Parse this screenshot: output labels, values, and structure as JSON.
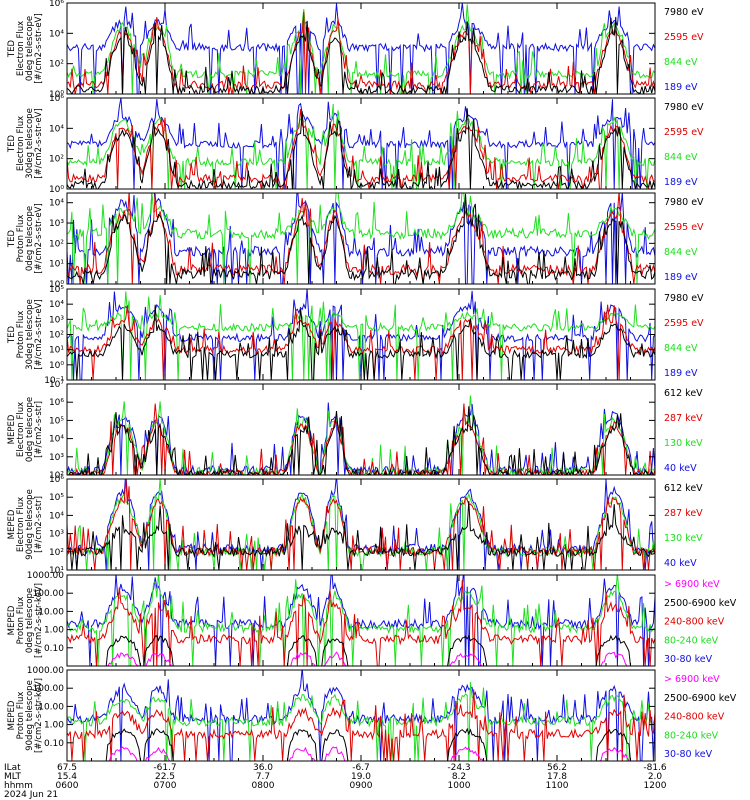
{
  "chart_data": {
    "type": "line",
    "x_hhmm_ticks": [
      "0600",
      "0700",
      "0800",
      "0900",
      "1000",
      "1100",
      "1200"
    ],
    "footer": {
      "row_labels": [
        "ILat",
        "MLT",
        "hhmm",
        "2024 Jun 21"
      ],
      "ilat_ticks": [
        "67.5",
        "-61.7",
        "36.0",
        "-6.7",
        "-24.3",
        "56.2",
        "-81.6"
      ],
      "mlt_ticks": [
        "15.4",
        "22.5",
        "7.7",
        "19.0",
        "8.2",
        "17.8",
        "2.0"
      ]
    },
    "colors": {
      "blue": "#1010e0",
      "red": "#e00000",
      "green": "#20e020",
      "black": "#000000",
      "magenta": "#ff00ff"
    },
    "panels": [
      {
        "ylabel": [
          "TED",
          "Electron Flux",
          "0deg telescope",
          "[#/cm2-s-str-eV]"
        ],
        "ylog": true,
        "yticks": [
          1,
          100,
          10000,
          1000000
        ],
        "ylim": [
          1,
          1000000
        ],
        "ytick_labels": [
          "10⁰",
          "10²",
          "10⁴",
          "10⁶"
        ],
        "series": [
          {
            "name": "7980 eV",
            "color": "#000000",
            "base": 2,
            "peak": 6000
          },
          {
            "name": "2595 eV",
            "color": "#e00000",
            "base": 4,
            "peak": 12000
          },
          {
            "name": "844 eV",
            "color": "#20e020",
            "base": 20,
            "peak": 30000
          },
          {
            "name": "189 eV",
            "color": "#1010e0",
            "base": 1200,
            "peak": 60000
          }
        ]
      },
      {
        "ylabel": [
          "TED",
          "Electron Flux",
          "30deg telescope",
          "[#/cm2-s-str-eV]"
        ],
        "ylog": true,
        "yticks": [
          1,
          100,
          10000,
          1000000
        ],
        "ylim": [
          1,
          1000000
        ],
        "ytick_labels": [
          "10⁰",
          "10²",
          "10⁴",
          "10⁶"
        ],
        "series": [
          {
            "name": "7980 eV",
            "color": "#000000",
            "base": 2,
            "peak": 6000
          },
          {
            "name": "2595 eV",
            "color": "#e00000",
            "base": 5,
            "peak": 12000
          },
          {
            "name": "844 eV",
            "color": "#20e020",
            "base": 60,
            "peak": 30000
          },
          {
            "name": "189 eV",
            "color": "#1010e0",
            "base": 900,
            "peak": 60000
          }
        ]
      },
      {
        "ylabel": [
          "TED",
          "Proton Flux",
          "0deg telescope",
          "[#/cm2-s-str-eV]"
        ],
        "ylog": true,
        "yticks": [
          1,
          10,
          100,
          1000,
          10000
        ],
        "ylim": [
          1,
          30000
        ],
        "ytick_labels": [
          "10⁰",
          "10¹",
          "10²",
          "10³",
          "10⁴"
        ],
        "series": [
          {
            "name": "7980 eV",
            "color": "#000000",
            "base": 3,
            "peak": 1500
          },
          {
            "name": "2595 eV",
            "color": "#e00000",
            "base": 5,
            "peak": 2500
          },
          {
            "name": "844 eV",
            "color": "#20e020",
            "base": 300,
            "peak": 4000
          },
          {
            "name": "189 eV",
            "color": "#1010e0",
            "base": 40,
            "peak": 9000
          }
        ]
      },
      {
        "ylabel": [
          "TED",
          "Proton Flux",
          "30deg telescope",
          "[#/cm2-s-str-eV]"
        ],
        "ylog": true,
        "yticks": [
          0.1,
          1,
          10,
          100,
          1000,
          10000,
          100000
        ],
        "ylim": [
          0.1,
          100000
        ],
        "ytick_labels": [
          "10⁻¹",
          "10⁰",
          "10¹",
          "10²",
          "10³",
          "10⁴",
          "10⁵"
        ],
        "series": [
          {
            "name": "7980 eV",
            "color": "#000000",
            "base": 5,
            "peak": 300
          },
          {
            "name": "2595 eV",
            "color": "#e00000",
            "base": 10,
            "peak": 800
          },
          {
            "name": "844 eV",
            "color": "#20e020",
            "base": 300,
            "peak": 2000
          },
          {
            "name": "189 eV",
            "color": "#1010e0",
            "base": 60,
            "peak": 6000
          }
        ]
      },
      {
        "ylabel": [
          "MEPED",
          "Electron Flux",
          "0deg telescope",
          "[#/cm2-s-str]"
        ],
        "ylog": true,
        "yticks": [
          100,
          1000,
          10000,
          100000,
          1000000,
          10000000
        ],
        "ylim": [
          100,
          10000000
        ],
        "ytick_labels": [
          "10²",
          "10³",
          "10⁴",
          "10⁵",
          "10⁶",
          "10⁷"
        ],
        "series": [
          {
            "name": "612 keV",
            "color": "#000000",
            "base": 110,
            "peak": 40000
          },
          {
            "name": "287 keV",
            "color": "#e00000",
            "base": 120,
            "peak": 60000
          },
          {
            "name": "130 keV",
            "color": "#20e020",
            "base": 150,
            "peak": 100000
          },
          {
            "name": "40 keV",
            "color": "#1010e0",
            "base": 180,
            "peak": 200000
          }
        ]
      },
      {
        "ylabel": [
          "MEPED",
          "Electron Flux",
          "90deg telescope",
          "[#/cm2-s-str]"
        ],
        "ylog": true,
        "yticks": [
          10,
          100,
          1000,
          10000,
          100000,
          1000000
        ],
        "ylim": [
          10,
          1000000
        ],
        "ytick_labels": [
          "10¹",
          "10²",
          "10³",
          "10⁴",
          "10⁵",
          "10⁶"
        ],
        "series": [
          {
            "name": "612 keV",
            "color": "#000000",
            "base": 100,
            "peak": 2000
          },
          {
            "name": "287 keV",
            "color": "#e00000",
            "base": 110,
            "peak": 60000
          },
          {
            "name": "130 keV",
            "color": "#20e020",
            "base": 100,
            "peak": 100000
          },
          {
            "name": "40 keV",
            "color": "#1010e0",
            "base": 150,
            "peak": 200000
          }
        ]
      },
      {
        "ylabel": [
          "MEPED",
          "Proton Flux",
          "0deg telescope",
          "[#/cm2-s-str-keV]"
        ],
        "ylog": true,
        "yticks": [
          0.1,
          1,
          10,
          100,
          1000
        ],
        "ylim": [
          0.01,
          1000
        ],
        "ytick_labels": [
          "0.10",
          "1.00",
          "10.00",
          "100.00",
          "1000.00"
        ],
        "series": [
          {
            "name": "> 6900 keV",
            "color": "#ff00ff",
            "base": 0,
            "peak": 0.05
          },
          {
            "name": "2500-6900 keV",
            "color": "#000000",
            "base": 0,
            "peak": 0.4
          },
          {
            "name": "240-800 keV",
            "color": "#e00000",
            "base": 0.3,
            "peak": 20
          },
          {
            "name": "80-240 keV",
            "color": "#20e020",
            "base": 1.2,
            "peak": 80
          },
          {
            "name": "30-80 keV",
            "color": "#1010e0",
            "base": 2,
            "peak": 200
          }
        ]
      },
      {
        "ylabel": [
          "MEPED",
          "Proton Flux",
          "90deg telescope",
          "[#/cm2-s-str-keV]"
        ],
        "ylog": true,
        "yticks": [
          0.1,
          1,
          10,
          100,
          1000
        ],
        "ylim": [
          0.01,
          1000
        ],
        "ytick_labels": [
          "0.10",
          "1.00",
          "10.00",
          "100.00",
          "1000.00"
        ],
        "series": [
          {
            "name": "> 6900 keV",
            "color": "#ff00ff",
            "base": 0,
            "peak": 0.05
          },
          {
            "name": "2500-6900 keV",
            "color": "#000000",
            "base": 0,
            "peak": 0.5
          },
          {
            "name": "240-800 keV",
            "color": "#e00000",
            "base": 0.3,
            "peak": 5
          },
          {
            "name": "80-240 keV",
            "color": "#20e020",
            "base": 1.5,
            "peak": 30
          },
          {
            "name": "30-80 keV",
            "color": "#1010e0",
            "base": 2,
            "peak": 100
          }
        ]
      }
    ]
  }
}
